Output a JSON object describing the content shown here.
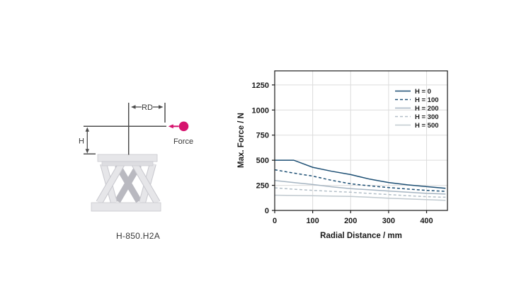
{
  "page": {
    "background": "#ffffff"
  },
  "diagram": {
    "model_label": "H-850.H2A",
    "labels": {
      "rd": "RD",
      "h": "H",
      "force": "Force"
    },
    "colors": {
      "force_magenta": "#d6146e",
      "dimension_line": "#4d4d4d",
      "body_light": "#e6e6e9",
      "body_shadow": "#b9b9c0"
    }
  },
  "chart_data": {
    "type": "line",
    "title": "",
    "xlabel": "Radial Distance / mm",
    "ylabel": "Max. Force / N",
    "xlim": [
      0,
      455
    ],
    "ylim": [
      0,
      1390
    ],
    "xticks": [
      0,
      100,
      200,
      300,
      400
    ],
    "yticks": [
      0,
      250,
      500,
      750,
      1000,
      1250
    ],
    "grid": true,
    "grid_color": "#dcdcdc",
    "border_color": "#1a1a1a",
    "legend_position": "top-right-inside",
    "x": [
      0,
      50,
      100,
      150,
      200,
      250,
      300,
      350,
      400,
      450
    ],
    "series": [
      {
        "name": "H = 0",
        "color": "#1d4f74",
        "dash": null,
        "values": [
          500,
          500,
          430,
          390,
          357,
          312,
          278,
          255,
          237,
          220
        ]
      },
      {
        "name": "H = 100",
        "color": "#1d4f74",
        "dash": "4,3",
        "values": [
          405,
          372,
          342,
          300,
          265,
          245,
          228,
          213,
          200,
          190
        ]
      },
      {
        "name": "H = 200",
        "color": "#a6b5c2",
        "dash": null,
        "values": [
          298,
          278,
          258,
          236,
          217,
          205,
          193,
          181,
          170,
          163
        ]
      },
      {
        "name": "H = 300",
        "color": "#b3bfc8",
        "dash": "4,3",
        "values": [
          225,
          212,
          200,
          190,
          181,
          169,
          158,
          147,
          137,
          131
        ]
      },
      {
        "name": "H = 500",
        "color": "#c0c9cf",
        "dash": null,
        "values": [
          152,
          149,
          146,
          143,
          140,
          131,
          122,
          114,
          107,
          101
        ]
      }
    ]
  }
}
